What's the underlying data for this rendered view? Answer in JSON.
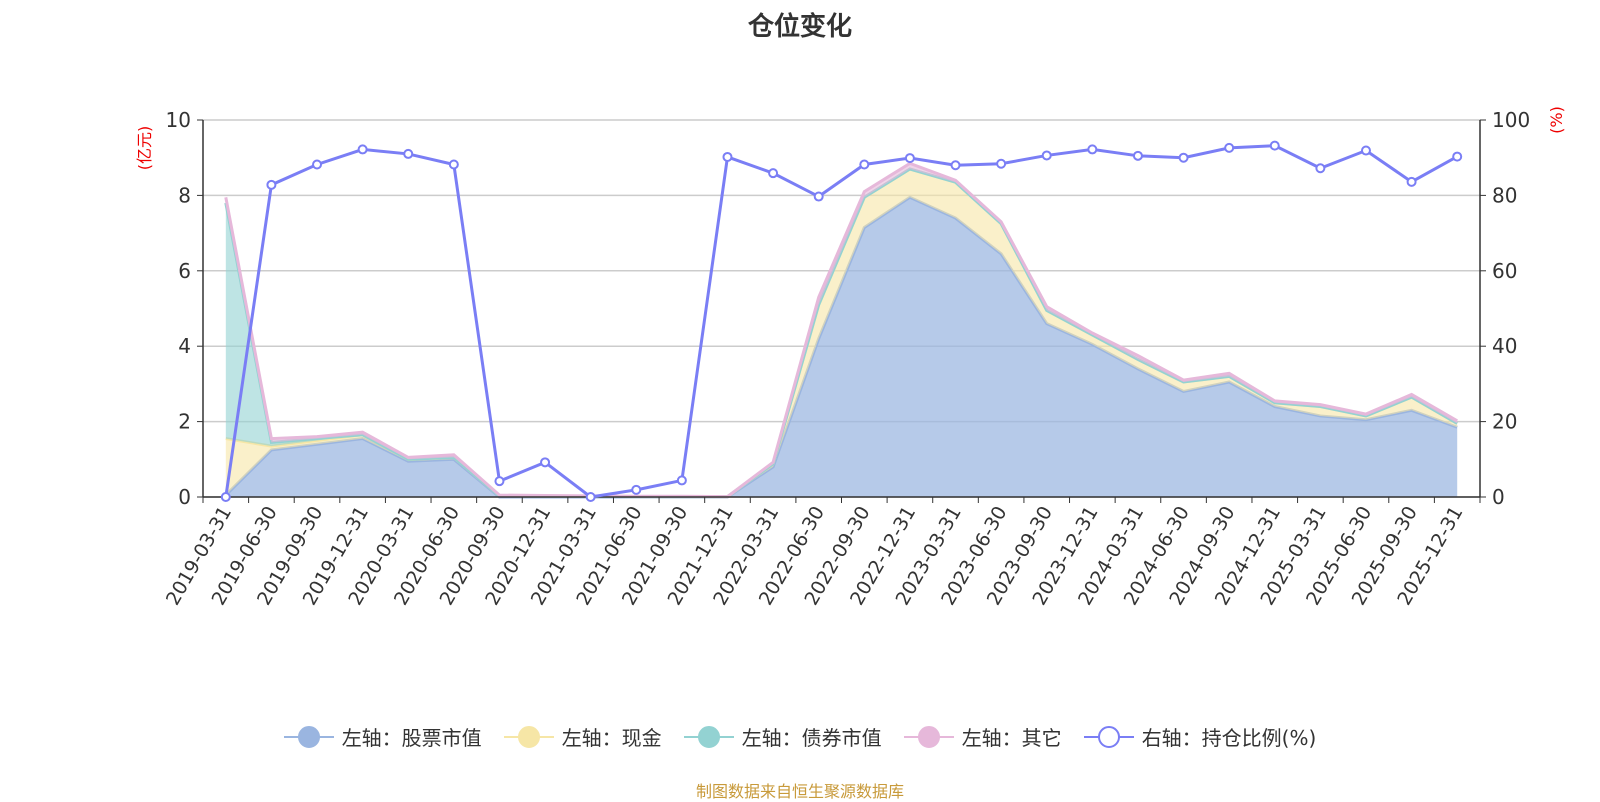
{
  "title": "仓位变化",
  "footer": "制图数据来自恒生聚源数据库",
  "chart_data": {
    "type": "area",
    "stacked": true,
    "categories": [
      "2019-03-31",
      "2019-06-30",
      "2019-09-30",
      "2019-12-31",
      "2020-03-31",
      "2020-06-30",
      "2020-09-30",
      "2020-12-31",
      "2021-03-31",
      "2021-06-30",
      "2021-09-30",
      "2021-12-31",
      "2022-03-31",
      "2022-06-30",
      "2022-09-30",
      "2022-12-31",
      "2023-03-31",
      "2023-06-30",
      "2023-09-30",
      "2023-12-31",
      "2024-03-31",
      "2024-06-30",
      "2024-09-30",
      "2024-12-31",
      "2025-03-31",
      "2025-06-30",
      "2025-09-30",
      "2025-12-31"
    ],
    "left_axis": {
      "label": "(亿元)",
      "range": [
        0,
        10
      ],
      "ticks": [
        0,
        2,
        4,
        6,
        8,
        10
      ]
    },
    "right_axis": {
      "label": "(%)",
      "range": [
        0,
        100
      ],
      "ticks": [
        0,
        20,
        40,
        60,
        80,
        100
      ]
    },
    "grid": true,
    "legend_position": "bottom",
    "series": [
      {
        "name": "左轴：股票市值",
        "axis": "left",
        "color": "#9ab5e0",
        "values": [
          0.05,
          1.25,
          1.4,
          1.55,
          0.95,
          1.0,
          0,
          0,
          0,
          0,
          0,
          0,
          0.8,
          4.2,
          7.15,
          7.95,
          7.4,
          6.45,
          4.6,
          4.05,
          3.4,
          2.8,
          3.05,
          2.4,
          2.15,
          2.05,
          2.3,
          1.85
        ]
      },
      {
        "name": "左轴：现金",
        "axis": "left",
        "color": "#f6e6a6",
        "values": [
          1.5,
          0.1,
          0.1,
          0.1,
          0.05,
          0.05,
          0.03,
          0.02,
          0.02,
          0.01,
          0.01,
          0.01,
          0.08,
          0.9,
          0.8,
          0.75,
          0.95,
          0.8,
          0.35,
          0.25,
          0.25,
          0.25,
          0.15,
          0.1,
          0.25,
          0.1,
          0.35,
          0.1
        ]
      },
      {
        "name": "左轴：债券市值",
        "axis": "left",
        "color": "#93d2d2",
        "values": [
          6.25,
          0.1,
          0.05,
          0,
          0,
          0,
          0,
          0,
          0,
          0,
          0,
          0,
          0,
          0,
          0,
          0,
          0,
          0,
          0,
          0,
          0,
          0,
          0,
          0,
          0,
          0,
          0,
          0
        ]
      },
      {
        "name": "左轴：其它",
        "axis": "left",
        "color": "#e6b8da",
        "values": [
          0.15,
          0.1,
          0.05,
          0.07,
          0.05,
          0.07,
          0.02,
          0.02,
          0.01,
          0.01,
          0.01,
          0,
          0.04,
          0.2,
          0.15,
          0.15,
          0.05,
          0.05,
          0.1,
          0.05,
          0.1,
          0.05,
          0.08,
          0.05,
          0.05,
          0.05,
          0.07,
          0.07
        ]
      },
      {
        "name": "右轴：持仓比例(%)",
        "axis": "right",
        "color": "#7a7ef5",
        "values": [
          0,
          82.8,
          88.2,
          92.2,
          91,
          88.2,
          4.2,
          9.2,
          0,
          1.9,
          4.4,
          90.2,
          85.9,
          79.7,
          88.2,
          89.9,
          88,
          88.4,
          90.6,
          92.2,
          90.5,
          90,
          92.6,
          93.2,
          87.2,
          91.9,
          83.6,
          90.3
        ]
      }
    ]
  }
}
